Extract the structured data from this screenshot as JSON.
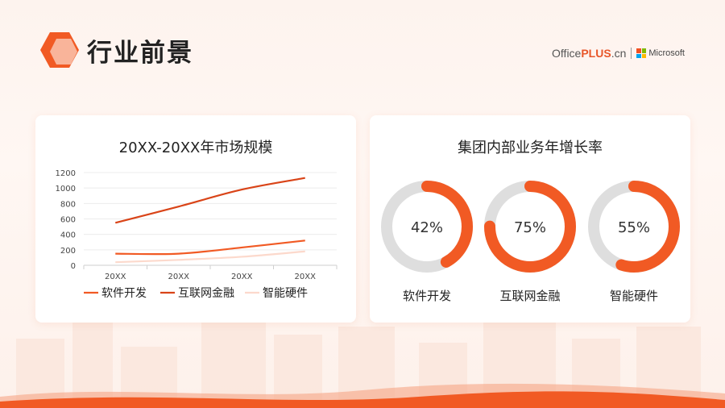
{
  "page": {
    "title": "行业前景"
  },
  "brand": {
    "text_office": "Office",
    "text_plus": "PLUS",
    "text_cn": ".cn",
    "text_ms": "Microsoft"
  },
  "colors": {
    "accent": "#f15a24",
    "accent_dark": "#d94418",
    "light": "#fcd9cc",
    "ring_bg": "#dedede"
  },
  "chart_data": [
    {
      "type": "line",
      "title": "20XX-20XX年市场规模",
      "categories": [
        "20XX",
        "20XX",
        "20XX",
        "20XX"
      ],
      "ylim": [
        0,
        1200
      ],
      "yticks": [
        0,
        200,
        400,
        600,
        800,
        1000,
        1200
      ],
      "series": [
        {
          "name": "软件开发",
          "color": "#f15a24",
          "values": [
            150,
            150,
            230,
            320
          ]
        },
        {
          "name": "互联网金融",
          "color": "#d94418",
          "values": [
            550,
            760,
            980,
            1130
          ]
        },
        {
          "name": "智能硬件",
          "color": "#fcd9cc",
          "values": [
            40,
            70,
            110,
            180
          ]
        }
      ],
      "legend": "bottom",
      "grid": true
    },
    {
      "type": "pie",
      "title": "集团内部业务年增长率",
      "items": [
        {
          "name": "软件开发",
          "value": 42,
          "label": "42%"
        },
        {
          "name": "互联网金融",
          "value": 75,
          "label": "75%"
        },
        {
          "name": "智能硬件",
          "value": 55,
          "label": "55%"
        }
      ]
    }
  ]
}
